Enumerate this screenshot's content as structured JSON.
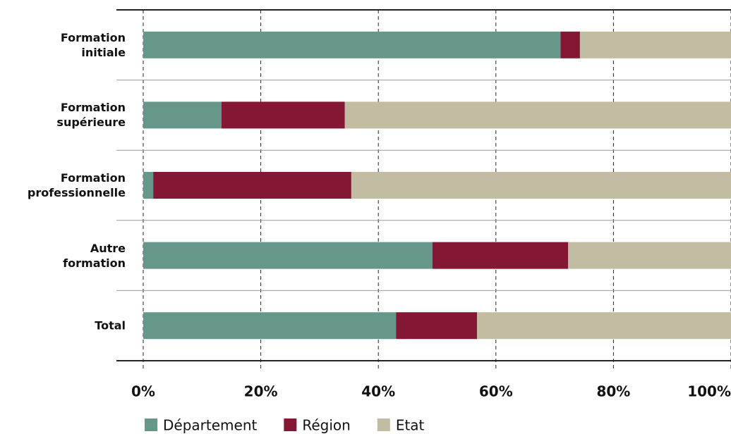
{
  "chart_data": {
    "type": "stacked-bar-horizontal",
    "categories": [
      "Formation\ninitiale",
      "Formation\nsupérieure",
      "Formation\nprofessionnelle",
      "Autre\nformation",
      "Total"
    ],
    "series": [
      {
        "name": "Département",
        "color": "#67978a",
        "values": [
          71,
          13.3,
          1.7,
          49.2,
          43
        ]
      },
      {
        "name": "Région",
        "color": "#841834",
        "values": [
          3.3,
          21,
          33.7,
          23.1,
          13.8
        ]
      },
      {
        "name": "Etat",
        "color": "#c2bca3",
        "values": [
          25.7,
          65.7,
          64.6,
          27.7,
          43.2
        ]
      }
    ],
    "xlim": [
      0,
      100
    ],
    "xticks": [
      {
        "value": 0,
        "label": "0%"
      },
      {
        "value": 20,
        "label": "20%"
      },
      {
        "value": 40,
        "label": "40%"
      },
      {
        "value": 60,
        "label": "60%"
      },
      {
        "value": 80,
        "label": "80%"
      },
      {
        "value": 100,
        "label": "100%"
      }
    ],
    "grid": true
  }
}
